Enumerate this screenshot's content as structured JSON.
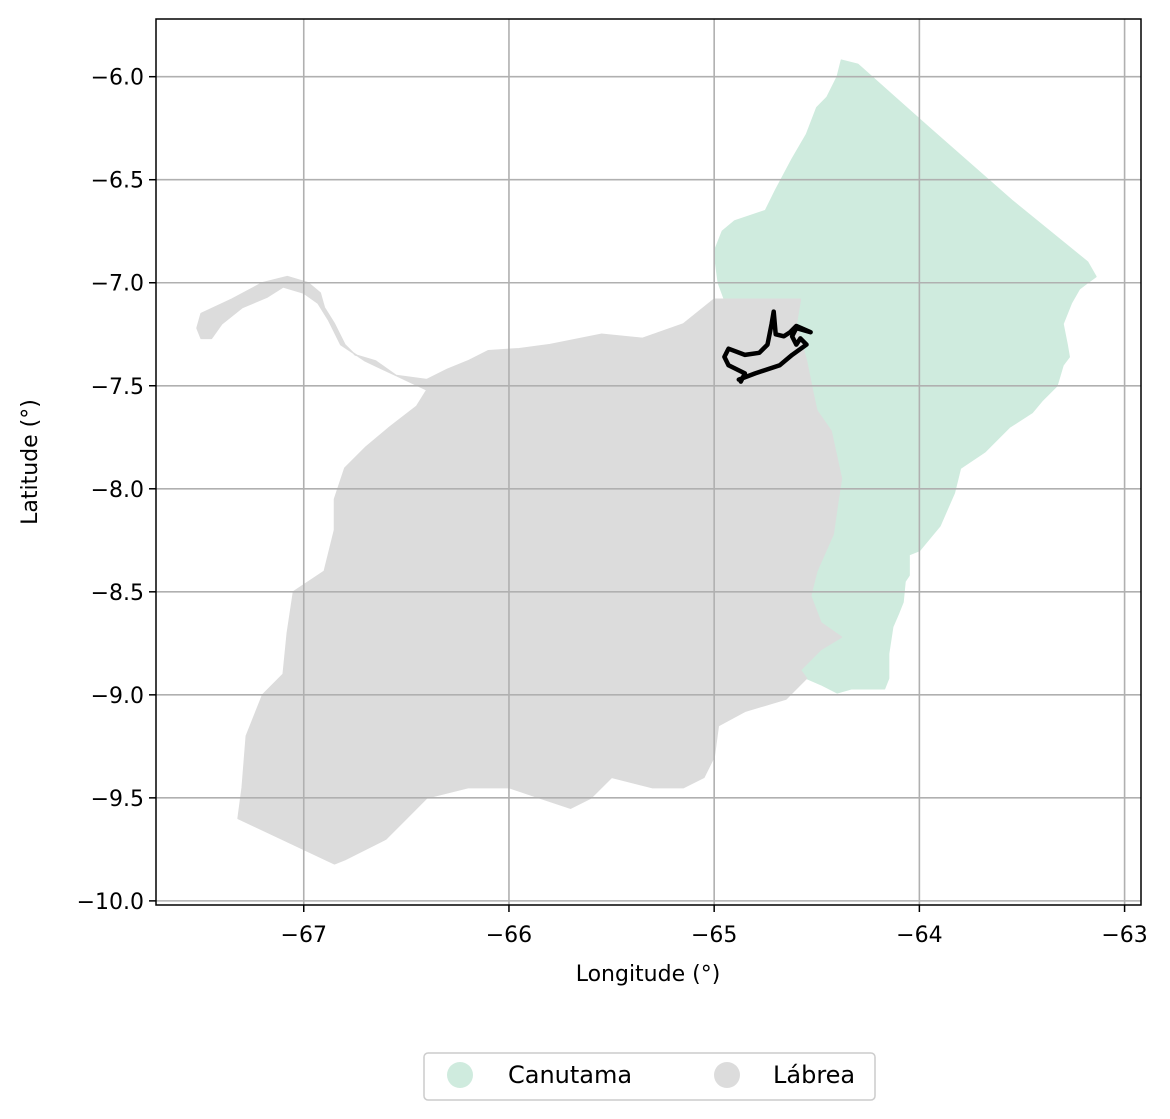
{
  "map": {
    "xlabel": "Longitude (°)",
    "ylabel": "Latitude (°)",
    "xlim": [
      -67.72,
      -62.92
    ],
    "ylim": [
      -10.02,
      -5.72
    ],
    "xticks": [
      {
        "value": -67,
        "label": "−67"
      },
      {
        "value": -66,
        "label": "−66"
      },
      {
        "value": -65,
        "label": "−65"
      },
      {
        "value": -64,
        "label": "−64"
      },
      {
        "value": -63,
        "label": "−63"
      }
    ],
    "yticks": [
      {
        "value": -6.0,
        "label": "−6.0"
      },
      {
        "value": -6.5,
        "label": "−6.5"
      },
      {
        "value": -7.0,
        "label": "−7.0"
      },
      {
        "value": -7.5,
        "label": "−7.5"
      },
      {
        "value": -8.0,
        "label": "−8.0"
      },
      {
        "value": -8.5,
        "label": "−8.5"
      },
      {
        "value": -9.0,
        "label": "−9.0"
      },
      {
        "value": -9.5,
        "label": "−9.5"
      },
      {
        "value": -10.0,
        "label": "−10.0"
      }
    ],
    "grid": true,
    "legend_placement": "bottom-center (below plot)",
    "regions": [
      {
        "name": "Canutama",
        "color": "#cfebde",
        "polygon": [
          [
            -64.38,
            -5.92
          ],
          [
            -64.3,
            -5.94
          ],
          [
            -63.95,
            -6.25
          ],
          [
            -63.55,
            -6.6
          ],
          [
            -63.18,
            -6.9
          ],
          [
            -63.14,
            -6.97
          ],
          [
            -63.18,
            -7.0
          ],
          [
            -63.22,
            -7.03
          ],
          [
            -63.26,
            -7.1
          ],
          [
            -63.3,
            -7.2
          ],
          [
            -63.28,
            -7.3
          ],
          [
            -63.27,
            -7.36
          ],
          [
            -63.3,
            -7.4
          ],
          [
            -63.33,
            -7.5
          ],
          [
            -63.4,
            -7.57
          ],
          [
            -63.45,
            -7.63
          ],
          [
            -63.56,
            -7.7
          ],
          [
            -63.68,
            -7.82
          ],
          [
            -63.8,
            -7.9
          ],
          [
            -63.83,
            -8.02
          ],
          [
            -63.9,
            -8.18
          ],
          [
            -64.0,
            -8.3
          ],
          [
            -64.05,
            -8.32
          ],
          [
            -64.05,
            -8.42
          ],
          [
            -64.07,
            -8.45
          ],
          [
            -64.08,
            -8.55
          ],
          [
            -64.1,
            -8.6
          ],
          [
            -64.13,
            -8.67
          ],
          [
            -64.15,
            -8.8
          ],
          [
            -64.15,
            -8.92
          ],
          [
            -64.17,
            -8.97
          ],
          [
            -64.33,
            -8.97
          ],
          [
            -64.4,
            -8.99
          ],
          [
            -64.48,
            -8.95
          ],
          [
            -64.55,
            -8.92
          ],
          [
            -64.58,
            -8.88
          ],
          [
            -64.48,
            -8.78
          ],
          [
            -64.38,
            -8.72
          ],
          [
            -64.48,
            -8.65
          ],
          [
            -64.53,
            -8.52
          ],
          [
            -64.5,
            -8.4
          ],
          [
            -64.42,
            -8.22
          ],
          [
            -64.4,
            -8.08
          ],
          [
            -64.38,
            -7.95
          ],
          [
            -64.43,
            -7.72
          ],
          [
            -64.5,
            -7.62
          ],
          [
            -64.52,
            -7.53
          ],
          [
            -64.55,
            -7.38
          ],
          [
            -64.6,
            -7.2
          ],
          [
            -64.58,
            -7.08
          ],
          [
            -64.95,
            -7.08
          ],
          [
            -64.98,
            -7.0
          ],
          [
            -65.0,
            -6.85
          ],
          [
            -64.96,
            -6.75
          ],
          [
            -64.9,
            -6.7
          ],
          [
            -64.75,
            -6.65
          ],
          [
            -64.7,
            -6.55
          ],
          [
            -64.62,
            -6.4
          ],
          [
            -64.55,
            -6.28
          ],
          [
            -64.5,
            -6.15
          ],
          [
            -64.45,
            -6.1
          ],
          [
            -64.4,
            -6.0
          ]
        ]
      },
      {
        "name": "Lábrea",
        "color": "#dcdcdc",
        "polygon": [
          [
            -67.5,
            -7.15
          ],
          [
            -67.35,
            -7.08
          ],
          [
            -67.2,
            -7.0
          ],
          [
            -67.08,
            -6.97
          ],
          [
            -66.98,
            -7.0
          ],
          [
            -66.92,
            -7.05
          ],
          [
            -66.9,
            -7.12
          ],
          [
            -66.85,
            -7.2
          ],
          [
            -66.8,
            -7.3
          ],
          [
            -66.75,
            -7.35
          ],
          [
            -66.65,
            -7.38
          ],
          [
            -66.55,
            -7.45
          ],
          [
            -66.4,
            -7.47
          ],
          [
            -66.3,
            -7.42
          ],
          [
            -66.2,
            -7.38
          ],
          [
            -66.1,
            -7.33
          ],
          [
            -65.95,
            -7.32
          ],
          [
            -65.8,
            -7.3
          ],
          [
            -65.55,
            -7.25
          ],
          [
            -65.35,
            -7.27
          ],
          [
            -65.15,
            -7.2
          ],
          [
            -65.05,
            -7.12
          ],
          [
            -65.0,
            -7.08
          ],
          [
            -64.58,
            -7.08
          ],
          [
            -64.6,
            -7.2
          ],
          [
            -64.55,
            -7.38
          ],
          [
            -64.52,
            -7.53
          ],
          [
            -64.5,
            -7.62
          ],
          [
            -64.43,
            -7.72
          ],
          [
            -64.38,
            -7.95
          ],
          [
            -64.4,
            -8.08
          ],
          [
            -64.42,
            -8.22
          ],
          [
            -64.5,
            -8.4
          ],
          [
            -64.53,
            -8.52
          ],
          [
            -64.48,
            -8.65
          ],
          [
            -64.38,
            -8.72
          ],
          [
            -64.48,
            -8.78
          ],
          [
            -64.58,
            -8.88
          ],
          [
            -64.55,
            -8.92
          ],
          [
            -64.65,
            -9.02
          ],
          [
            -64.85,
            -9.08
          ],
          [
            -64.98,
            -9.15
          ],
          [
            -65.0,
            -9.3
          ],
          [
            -65.05,
            -9.4
          ],
          [
            -65.15,
            -9.45
          ],
          [
            -65.3,
            -9.45
          ],
          [
            -65.5,
            -9.4
          ],
          [
            -65.6,
            -9.5
          ],
          [
            -65.7,
            -9.55
          ],
          [
            -65.85,
            -9.5
          ],
          [
            -66.0,
            -9.45
          ],
          [
            -66.2,
            -9.45
          ],
          [
            -66.4,
            -9.5
          ],
          [
            -66.5,
            -9.6
          ],
          [
            -66.6,
            -9.7
          ],
          [
            -66.8,
            -9.8
          ],
          [
            -66.85,
            -9.82
          ],
          [
            -67.32,
            -9.6
          ],
          [
            -67.3,
            -9.45
          ],
          [
            -67.28,
            -9.2
          ],
          [
            -67.2,
            -9.0
          ],
          [
            -67.1,
            -8.9
          ],
          [
            -67.08,
            -8.7
          ],
          [
            -67.05,
            -8.5
          ],
          [
            -66.9,
            -8.4
          ],
          [
            -66.85,
            -8.2
          ],
          [
            -66.85,
            -8.05
          ],
          [
            -66.8,
            -7.9
          ],
          [
            -66.7,
            -7.8
          ],
          [
            -66.58,
            -7.7
          ],
          [
            -66.45,
            -7.6
          ],
          [
            -66.4,
            -7.52
          ],
          [
            -66.55,
            -7.45
          ],
          [
            -66.7,
            -7.38
          ],
          [
            -66.82,
            -7.3
          ],
          [
            -66.88,
            -7.18
          ],
          [
            -66.93,
            -7.1
          ],
          [
            -67.0,
            -7.05
          ],
          [
            -67.1,
            -7.02
          ],
          [
            -67.18,
            -7.07
          ],
          [
            -67.3,
            -7.12
          ],
          [
            -67.4,
            -7.2
          ],
          [
            -67.45,
            -7.27
          ],
          [
            -67.5,
            -7.27
          ],
          [
            -67.52,
            -7.22
          ]
        ]
      }
    ],
    "outline": {
      "color": "#000000",
      "polyline": [
        [
          -64.88,
          -7.47
        ],
        [
          -64.8,
          -7.44
        ],
        [
          -64.68,
          -7.4
        ],
        [
          -64.62,
          -7.35
        ],
        [
          -64.55,
          -7.3
        ],
        [
          -64.58,
          -7.27
        ],
        [
          -64.6,
          -7.3
        ],
        [
          -64.62,
          -7.26
        ],
        [
          -64.6,
          -7.22
        ],
        [
          -64.53,
          -7.24
        ],
        [
          -64.6,
          -7.21
        ],
        [
          -64.63,
          -7.24
        ],
        [
          -64.66,
          -7.26
        ],
        [
          -64.7,
          -7.25
        ],
        [
          -64.71,
          -7.14
        ],
        [
          -64.72,
          -7.2
        ],
        [
          -64.74,
          -7.3
        ],
        [
          -64.78,
          -7.34
        ],
        [
          -64.85,
          -7.35
        ],
        [
          -64.93,
          -7.32
        ],
        [
          -64.95,
          -7.36
        ],
        [
          -64.93,
          -7.4
        ],
        [
          -64.85,
          -7.44
        ],
        [
          -64.87,
          -7.48
        ]
      ]
    }
  },
  "legend": {
    "items": [
      {
        "label": "Canutama",
        "color": "#cfebde"
      },
      {
        "label": "Lábrea",
        "color": "#dcdcdc"
      }
    ]
  }
}
